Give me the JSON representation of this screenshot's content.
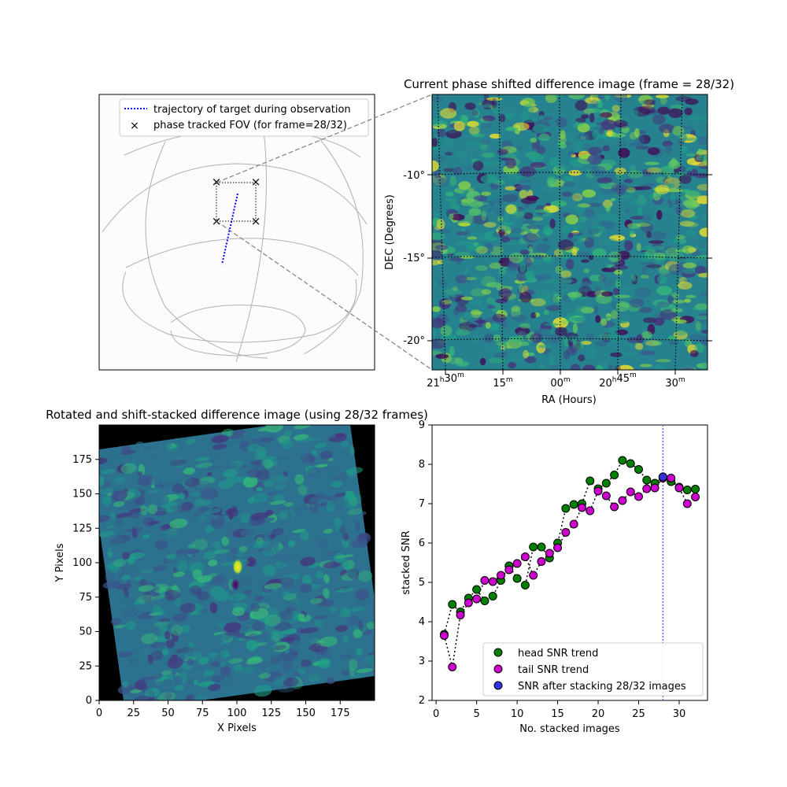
{
  "figure": {
    "background": "#ffffff"
  },
  "chart_data": [
    {
      "type": "other",
      "name": "sky-overview",
      "legend": {
        "placement": "top-right",
        "entries": [
          {
            "label": "trajectory of target during observation",
            "style": "dotted-line",
            "color": "#0000ff"
          },
          {
            "label": "phase tracked FOV (for frame=28/32)",
            "style": "x-marker",
            "color": "#000000"
          }
        ]
      },
      "fov_corner_marker": "×"
    },
    {
      "type": "heatmap",
      "name": "phase-shifted-difference-image",
      "title": "Current phase shifted difference image (frame = 28/32)",
      "xlabel": "RA (Hours)",
      "ylabel": "DEC (Degrees)",
      "ra_ticks": [
        {
          "h": "21",
          "hs": "h",
          "m": "30",
          "ms": "m"
        },
        {
          "h": "",
          "hs": "",
          "m": "15",
          "ms": "m"
        },
        {
          "h": "",
          "hs": "",
          "m": "00",
          "ms": "m"
        },
        {
          "h": "20",
          "hs": "h",
          "m": "45",
          "ms": "m"
        },
        {
          "h": "",
          "hs": "",
          "m": "30",
          "ms": "m"
        }
      ],
      "dec_ticks": [
        "-10°",
        "-15°",
        "-20°"
      ],
      "colormap": "viridis"
    },
    {
      "type": "heatmap",
      "name": "stacked-difference-image",
      "title": "Rotated and shift-stacked difference image (using 28/32 frames)",
      "xlabel": "X Pixels",
      "ylabel": "Y Pixels",
      "xlim": [
        0,
        200
      ],
      "ylim": [
        0,
        200
      ],
      "xticks": [
        0,
        25,
        50,
        75,
        100,
        125,
        150,
        175
      ],
      "yticks": [
        0,
        25,
        50,
        75,
        100,
        125,
        150,
        175
      ],
      "source_center": [
        100,
        97
      ],
      "colormap": "viridis"
    },
    {
      "type": "scatter",
      "name": "snr-trend",
      "xlabel": "No. stacked images",
      "ylabel": "stacked SNR",
      "xlim": [
        -0.5,
        33.5
      ],
      "ylim": [
        2,
        9
      ],
      "xticks": [
        0,
        5,
        10,
        15,
        20,
        25,
        30
      ],
      "yticks": [
        2,
        3,
        4,
        5,
        6,
        7,
        8,
        9
      ],
      "vline_x": 28,
      "x": [
        1,
        2,
        3,
        4,
        5,
        6,
        7,
        8,
        9,
        10,
        11,
        12,
        13,
        14,
        15,
        16,
        17,
        18,
        19,
        20,
        21,
        22,
        23,
        24,
        25,
        26,
        27,
        28,
        29,
        30,
        31,
        32
      ],
      "series": [
        {
          "name": "head SNR trend",
          "color": "#008000",
          "line": "dotted",
          "values": [
            3.68,
            4.44,
            4.25,
            4.6,
            4.82,
            4.53,
            4.65,
            5.05,
            5.42,
            5.1,
            4.93,
            5.9,
            5.9,
            5.62,
            6.0,
            6.88,
            6.98,
            7.0,
            7.58,
            7.38,
            7.52,
            7.73,
            8.1,
            8.02,
            7.87,
            7.6,
            7.52,
            7.68,
            7.56,
            7.42,
            7.35,
            7.37
          ]
        },
        {
          "name": "tail SNR trend",
          "color": "#cc00cc",
          "line": "dotted",
          "values": [
            3.65,
            2.85,
            4.17,
            4.48,
            4.58,
            5.05,
            5.02,
            5.18,
            5.32,
            5.48,
            5.65,
            5.18,
            5.53,
            5.74,
            5.88,
            6.27,
            6.48,
            6.9,
            6.82,
            7.32,
            7.2,
            6.92,
            7.08,
            7.3,
            7.18,
            7.38,
            7.4,
            7.65,
            7.65,
            7.4,
            7.0,
            7.17
          ]
        },
        {
          "name": "SNR after stacking 28/32 images",
          "color": "#3333dd",
          "point": [
            28,
            7.68
          ]
        }
      ]
    }
  ]
}
